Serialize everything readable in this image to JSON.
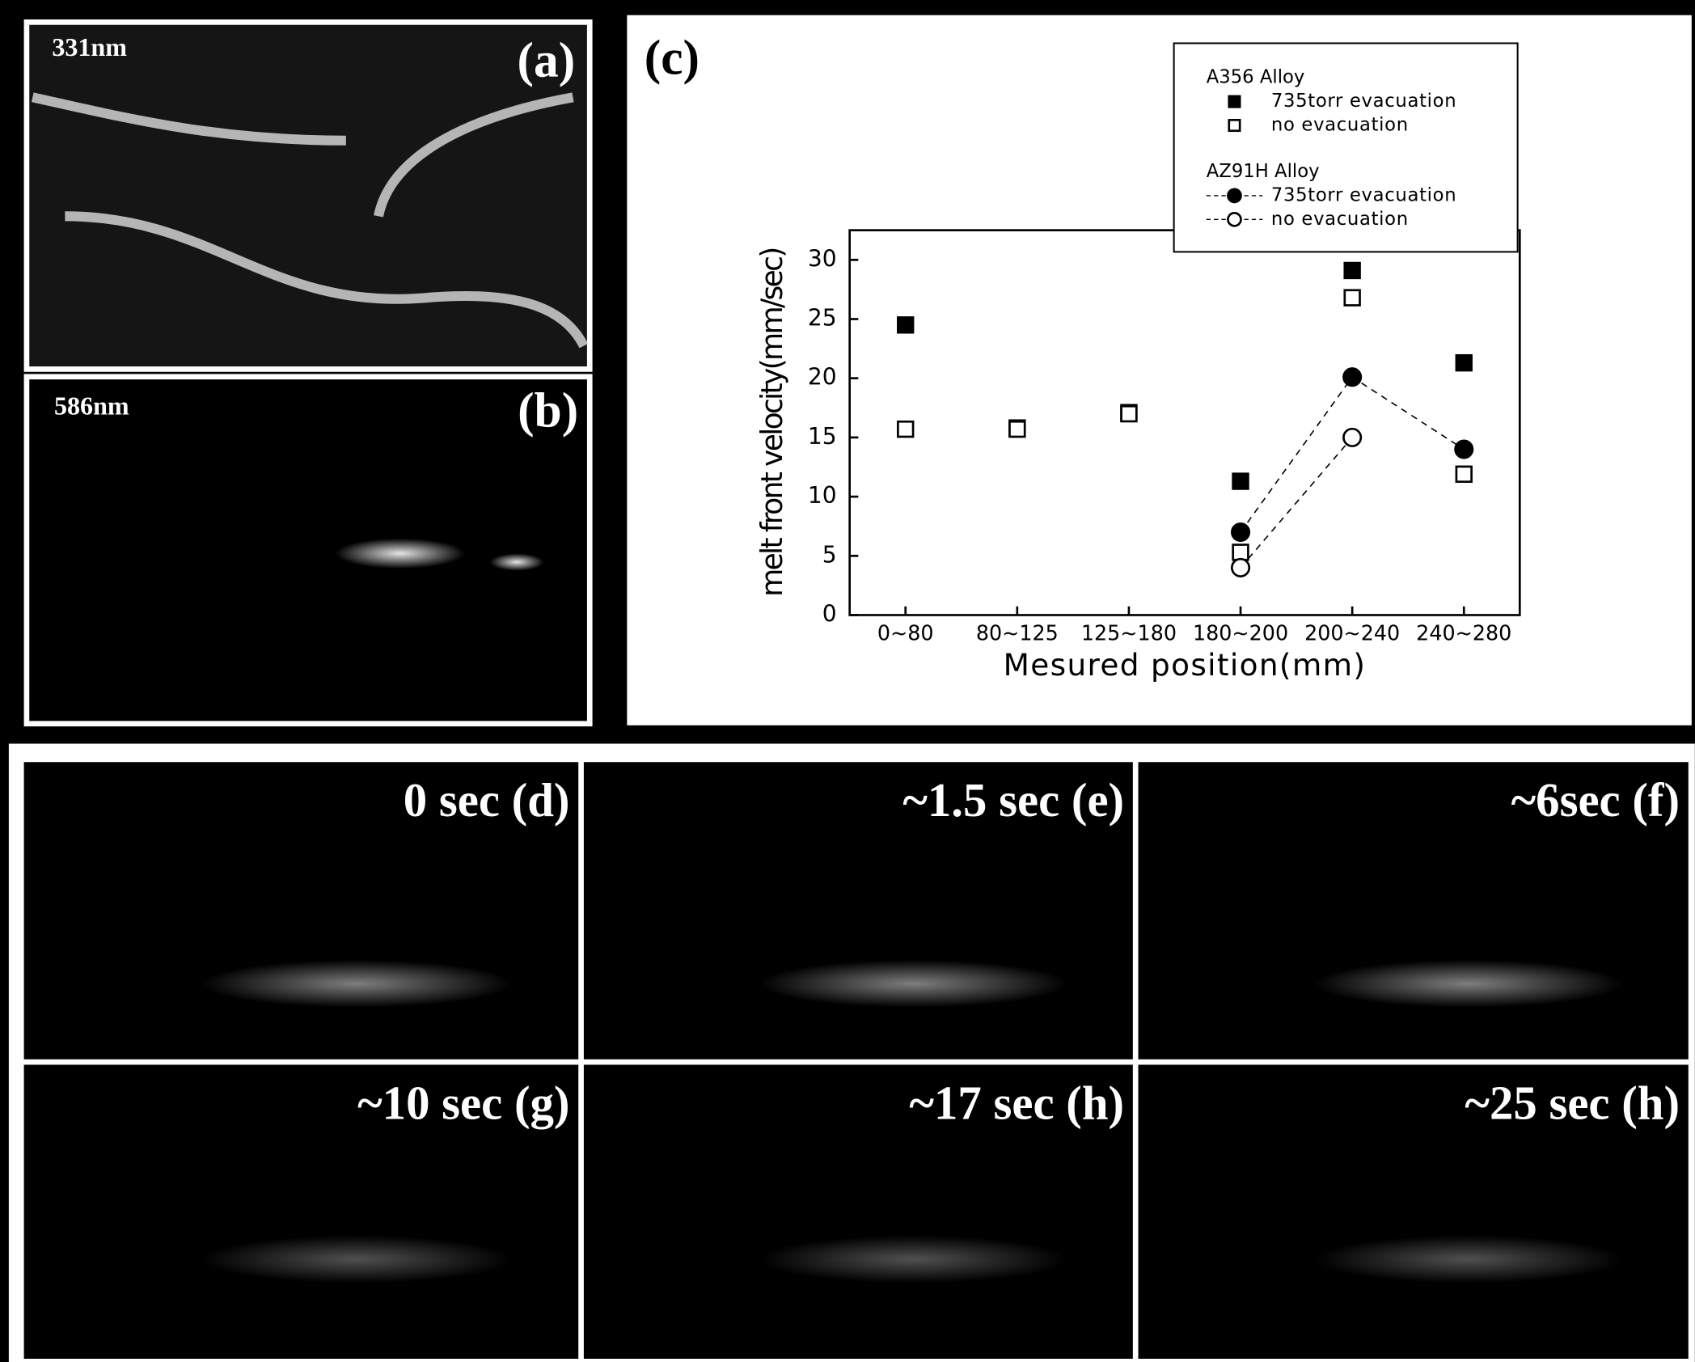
{
  "panels": {
    "a": {
      "wavelength": "331nm",
      "label": "(a)"
    },
    "b": {
      "wavelength": "586nm",
      "label": "(b)"
    },
    "frames": [
      "0 sec (d)",
      "~1.5 sec (e)",
      "~6sec (f)",
      "~10 sec (g)",
      "~17 sec (h)",
      "~25 sec (h)"
    ]
  },
  "chart_data": {
    "type": "scatter",
    "panel_label": "(c)",
    "x_label": "Mesured position(mm)",
    "y_label": "melt front velocity(mm/sec)",
    "categories": [
      "0~80",
      "80~125",
      "125~180",
      "180~200",
      "200~240",
      "240~280"
    ],
    "ylim": [
      0,
      32.5
    ],
    "yticks": [
      0,
      5,
      10,
      15,
      20,
      25,
      30
    ],
    "legend_groups": [
      "A356 Alloy",
      "AZ91H Alloy"
    ],
    "series": [
      {
        "name": "735torr evacuation",
        "group": 0,
        "marker": "square",
        "filled": true,
        "line": false,
        "color": "#000000",
        "values": [
          24.5,
          15.8,
          17.1,
          11.3,
          29.1,
          21.3
        ]
      },
      {
        "name": "no evacuation",
        "group": 0,
        "marker": "square",
        "filled": false,
        "line": false,
        "color": "#000000",
        "values": [
          15.7,
          15.7,
          17.0,
          5.3,
          26.8,
          11.9
        ]
      },
      {
        "name": "735torr evacuation",
        "group": 1,
        "marker": "circle",
        "filled": true,
        "line": true,
        "color": "#000000",
        "values": [
          null,
          null,
          null,
          7.0,
          20.1,
          14.0
        ]
      },
      {
        "name": "no evacuation",
        "group": 1,
        "marker": "circle",
        "filled": false,
        "line": true,
        "color": "#000000",
        "values": [
          null,
          null,
          null,
          4.0,
          15.0,
          null
        ]
      }
    ]
  }
}
